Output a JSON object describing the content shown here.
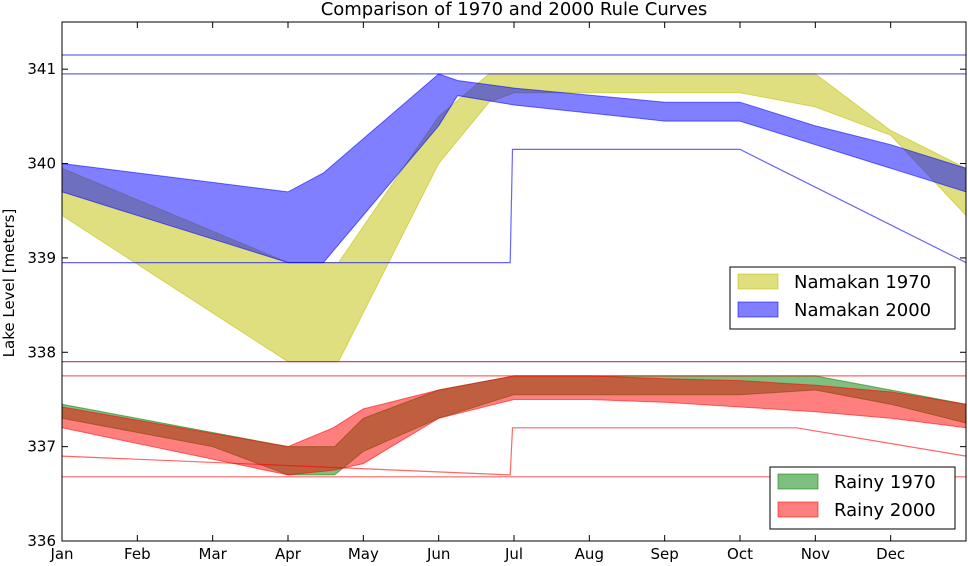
{
  "chart_data": {
    "type": "area",
    "title": "Comparison of 1970 and 2000 Rule Curves",
    "xlabel": "",
    "ylabel": "Lake Level [meters]",
    "xlim": [
      0,
      12
    ],
    "ylim": [
      336,
      341.5
    ],
    "x_tick_labels": [
      "Jan",
      "Feb",
      "Mar",
      "Apr",
      "May",
      "Jun",
      "Jul",
      "Aug",
      "Sep",
      "Oct",
      "Nov",
      "Dec"
    ],
    "y_ticks": [
      336,
      337,
      338,
      339,
      340,
      341
    ],
    "grid": false,
    "legends": [
      {
        "position": "center-right",
        "entries": [
          "Namakan 1970",
          "Namakan 2000"
        ]
      },
      {
        "position": "bottom-right",
        "entries": [
          "Rainy 1970",
          "Rainy 2000"
        ]
      }
    ],
    "bands": [
      {
        "name": "Namakan 1970",
        "color": "#bfbf00",
        "opacity": 0.5,
        "x": [
          0,
          3,
          3.67,
          5,
          5.67,
          6,
          8,
          9,
          10,
          11,
          12
        ],
        "upper": [
          339.95,
          338.95,
          338.95,
          340.5,
          340.95,
          340.95,
          340.95,
          340.95,
          340.95,
          340.35,
          339.95
        ],
        "lower": [
          339.45,
          337.9,
          337.9,
          340.0,
          340.65,
          340.75,
          340.75,
          340.75,
          340.6,
          340.3,
          339.45
        ]
      },
      {
        "name": "Namakan 2000",
        "color": "#0000ff",
        "opacity": 0.5,
        "x": [
          0,
          3,
          3.47,
          5,
          5.25,
          6,
          8,
          9,
          10,
          11,
          12
        ],
        "upper": [
          340.0,
          339.7,
          339.9,
          340.95,
          340.88,
          340.8,
          340.65,
          340.65,
          340.4,
          340.2,
          339.95
        ],
        "lower": [
          339.7,
          338.95,
          338.95,
          340.4,
          340.72,
          340.62,
          340.45,
          340.45,
          340.2,
          339.95,
          339.7
        ]
      },
      {
        "name": "Rainy 1970",
        "color": "#008000",
        "opacity": 0.5,
        "x": [
          0,
          2,
          3,
          3.62,
          4,
          5,
          6,
          8,
          9,
          10,
          11,
          12
        ],
        "upper": [
          337.45,
          337.15,
          337.0,
          337.0,
          337.3,
          337.6,
          337.75,
          337.75,
          337.75,
          337.75,
          337.6,
          337.45
        ],
        "lower": [
          337.3,
          337.0,
          336.7,
          336.7,
          336.95,
          337.3,
          337.55,
          337.55,
          337.55,
          337.6,
          337.45,
          337.25
        ]
      },
      {
        "name": "Rainy 2000",
        "color": "#ff0000",
        "opacity": 0.5,
        "x": [
          0,
          3,
          3.6,
          4,
          5,
          6,
          7,
          8,
          9,
          10,
          11,
          12
        ],
        "upper": [
          337.42,
          337.0,
          337.2,
          337.4,
          337.6,
          337.75,
          337.75,
          337.72,
          337.7,
          337.65,
          337.58,
          337.45
        ],
        "lower": [
          337.2,
          336.7,
          336.75,
          336.82,
          337.3,
          337.5,
          337.5,
          337.47,
          337.42,
          337.37,
          337.3,
          337.2
        ]
      }
    ],
    "lines": [
      {
        "name": "Namakan reference max",
        "color": "#0000ff",
        "opacity": 0.6,
        "x": [
          0,
          12
        ],
        "y": [
          341.15,
          341.15
        ]
      },
      {
        "name": "Namakan reference high",
        "color": "#0000ff",
        "opacity": 0.6,
        "x": [
          0,
          12
        ],
        "y": [
          340.95,
          340.95
        ]
      },
      {
        "name": "Namakan 1970 reference low",
        "color": "#0000ff",
        "opacity": 0.6,
        "x": [
          0,
          5.95,
          5.98,
          9,
          12
        ],
        "y": [
          338.95,
          338.95,
          340.15,
          340.15,
          338.95
        ]
      },
      {
        "name": "Namakan boundary",
        "color": "#990066",
        "opacity": 0.8,
        "x": [
          0,
          12
        ],
        "y": [
          337.9,
          337.9
        ]
      },
      {
        "name": "Rainy reference high",
        "color": "#ff0000",
        "opacity": 0.6,
        "x": [
          0,
          12
        ],
        "y": [
          337.75,
          337.75
        ]
      },
      {
        "name": "Rainy reference low",
        "color": "#ff0000",
        "opacity": 0.6,
        "x": [
          0,
          5.95,
          5.98,
          9.75,
          12
        ],
        "y": [
          336.9,
          336.7,
          337.2,
          337.2,
          336.9
        ]
      },
      {
        "name": "Rainy reference min",
        "color": "#ff0000",
        "opacity": 0.6,
        "x": [
          0,
          12
        ],
        "y": [
          336.68,
          336.68
        ]
      }
    ]
  }
}
